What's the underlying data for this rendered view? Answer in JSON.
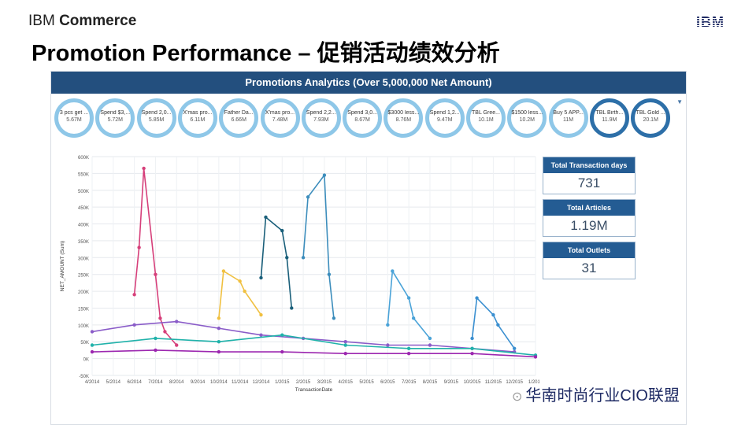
{
  "header": {
    "brand_light": "IBM",
    "brand_bold": "Commerce",
    "ibm_logo": "IBM",
    "title": "Promotion Performance – 促销活动绩效分析"
  },
  "dashboard": {
    "title": "Promotions Analytics (Over 5,000,000 Net Amount)",
    "filter_icon": "filter-icon",
    "promotions": [
      {
        "label": "3 pcs get ...",
        "value": "5.67M"
      },
      {
        "label": "Spend $3,...",
        "value": "5.72M"
      },
      {
        "label": "Spend 2,0...",
        "value": "5.85M"
      },
      {
        "label": "X'mas pro...",
        "value": "6.11M"
      },
      {
        "label": "Father Da...",
        "value": "6.66M"
      },
      {
        "label": "X'mas pro...",
        "value": "7.48M"
      },
      {
        "label": "Spend 2,2...",
        "value": "7.93M"
      },
      {
        "label": "Spend 3,0...",
        "value": "8.67M"
      },
      {
        "label": "$3000 less...",
        "value": "8.76M"
      },
      {
        "label": "Spend 1,2...",
        "value": "9.47M"
      },
      {
        "label": "TBL Gree...",
        "value": "10.1M"
      },
      {
        "label": "$1500 less...",
        "value": "10.2M"
      },
      {
        "label": "Buy 5 APP...",
        "value": "11M"
      },
      {
        "label": "TBL Birth...",
        "value": "11.9M"
      },
      {
        "label": "TBL Gold ...",
        "value": "20.1M"
      }
    ],
    "kpis": [
      {
        "title": "Total Transaction days",
        "value": "731"
      },
      {
        "title": "Total Articles",
        "value": "1.19M"
      },
      {
        "title": "Total Outlets",
        "value": "31"
      }
    ]
  },
  "watermark": "华南时尚行业CIO联盟",
  "chart_data": {
    "type": "line",
    "xlabel": "TransactionDate",
    "ylabel": "NET_AMOUNT (Sum)",
    "ylim": [
      -50000,
      600000
    ],
    "yticks": [
      "-50K",
      "0K",
      "50K",
      "100K",
      "150K",
      "200K",
      "250K",
      "300K",
      "350K",
      "400K",
      "450K",
      "500K",
      "550K",
      "600K"
    ],
    "xticks": [
      "4/2014",
      "5/2014",
      "6/2014",
      "7/2014",
      "8/2014",
      "9/2014",
      "10/2014",
      "11/2014",
      "12/2014",
      "1/2015",
      "2/2015",
      "3/2015",
      "4/2015",
      "5/2015",
      "6/2015",
      "7/2015",
      "8/2015",
      "9/2015",
      "10/2015",
      "11/2015",
      "12/2015",
      "1/2016"
    ],
    "grid": true,
    "series": [
      {
        "color": "#d63f7a",
        "x": [
          "6/2014",
          "6/2014",
          "6/2014",
          "7/2014",
          "7/2014",
          "7/2014",
          "8/2014"
        ],
        "y": [
          190000,
          330000,
          565000,
          250000,
          120000,
          80000,
          40000
        ]
      },
      {
        "color": "#f0c040",
        "x": [
          "10/2014",
          "10/2014",
          "11/2014",
          "11/2014",
          "12/2014"
        ],
        "y": [
          120000,
          260000,
          230000,
          200000,
          130000
        ]
      },
      {
        "color": "#1a5f7a",
        "x": [
          "12/2014",
          "12/2014",
          "1/2015",
          "1/2015",
          "1/2015"
        ],
        "y": [
          240000,
          420000,
          380000,
          300000,
          150000
        ]
      },
      {
        "color": "#3c8dbc",
        "x": [
          "2/2015",
          "2/2015",
          "3/2015",
          "3/2015",
          "3/2015"
        ],
        "y": [
          300000,
          480000,
          545000,
          250000,
          120000
        ]
      },
      {
        "color": "#4aa3d8",
        "x": [
          "6/2015",
          "6/2015",
          "7/2015",
          "7/2015",
          "8/2015"
        ],
        "y": [
          100000,
          260000,
          180000,
          120000,
          60000
        ]
      },
      {
        "color": "#3a8fd0",
        "x": [
          "10/2015",
          "10/2015",
          "11/2015",
          "11/2015",
          "12/2015"
        ],
        "y": [
          60000,
          180000,
          130000,
          100000,
          30000
        ]
      },
      {
        "color": "#8a5cc8",
        "x": [
          "4/2014",
          "6/2014",
          "8/2014",
          "10/2014",
          "12/2014",
          "2/2015",
          "4/2015",
          "6/2015",
          "8/2015",
          "10/2015",
          "12/2015"
        ],
        "y": [
          80000,
          100000,
          110000,
          90000,
          70000,
          60000,
          50000,
          40000,
          40000,
          30000,
          20000
        ]
      },
      {
        "color": "#20b2aa",
        "x": [
          "4/2014",
          "7/2014",
          "10/2014",
          "1/2015",
          "4/2015",
          "7/2015",
          "10/2015",
          "1/2016"
        ],
        "y": [
          40000,
          60000,
          50000,
          70000,
          40000,
          30000,
          30000,
          10000
        ]
      },
      {
        "color": "#9c27b0",
        "x": [
          "4/2014",
          "7/2014",
          "10/2014",
          "1/2015",
          "4/2015",
          "7/2015",
          "10/2015",
          "1/2016"
        ],
        "y": [
          20000,
          25000,
          20000,
          20000,
          15000,
          15000,
          15000,
          5000
        ]
      }
    ]
  }
}
